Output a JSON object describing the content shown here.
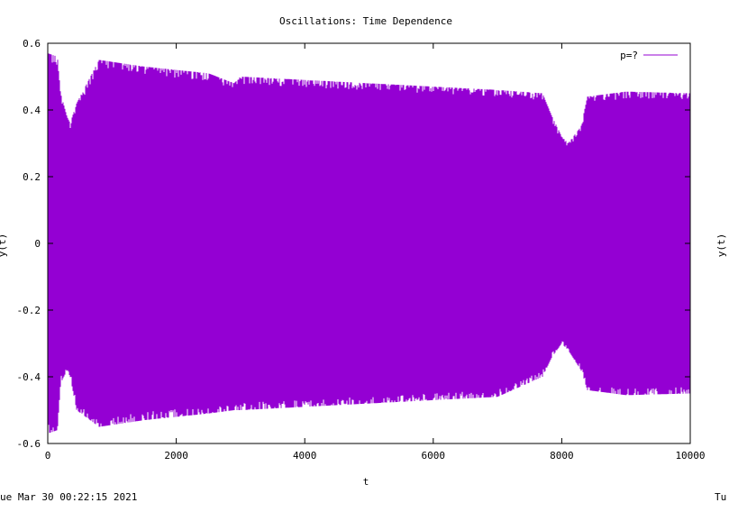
{
  "chart_data": {
    "type": "line",
    "title": "Oscillations: Time Dependence",
    "xlabel": "t",
    "ylabel": "y(t)",
    "right_ylabel": "y(t)",
    "xlim": [
      0,
      10000
    ],
    "ylim": [
      -0.6,
      0.6
    ],
    "x_ticks": [
      0,
      2000,
      4000,
      6000,
      8000,
      10000
    ],
    "x_tick_labels": [
      "0",
      "2000",
      "4000",
      "6000",
      "8000",
      "10000"
    ],
    "y_ticks": [
      -0.6,
      -0.4,
      -0.2,
      0,
      0.2,
      0.4,
      0.6
    ],
    "y_tick_labels": [
      "-0.6",
      "-0.4",
      "-0.2",
      "0",
      "0.2",
      "0.4",
      "0.6"
    ],
    "grid": false,
    "legend_position": "top-right",
    "series": [
      {
        "name": "p=?",
        "color": "#9400d3",
        "envelope": {
          "t": [
            0,
            150,
            200,
            300,
            350,
            450,
            800,
            1500,
            2500,
            2900,
            3000,
            4000,
            5000,
            6000,
            7000,
            7700,
            7850,
            8000,
            8100,
            8300,
            8400,
            9000,
            10000
          ],
          "upper": [
            0.57,
            0.56,
            0.45,
            0.38,
            0.36,
            0.42,
            0.55,
            0.53,
            0.51,
            0.48,
            0.5,
            0.49,
            0.48,
            0.47,
            0.46,
            0.45,
            0.38,
            0.32,
            0.3,
            0.35,
            0.44,
            0.455,
            0.45
          ],
          "lower": [
            -0.57,
            -0.56,
            -0.42,
            -0.38,
            -0.4,
            -0.5,
            -0.55,
            -0.53,
            -0.51,
            -0.5,
            -0.5,
            -0.49,
            -0.48,
            -0.47,
            -0.46,
            -0.4,
            -0.34,
            -0.3,
            -0.32,
            -0.38,
            -0.44,
            -0.455,
            -0.45
          ]
        }
      }
    ]
  },
  "footer": {
    "timestamp_left": "ue Mar 30 00:22:15 2021",
    "timestamp_right": "Tu"
  }
}
